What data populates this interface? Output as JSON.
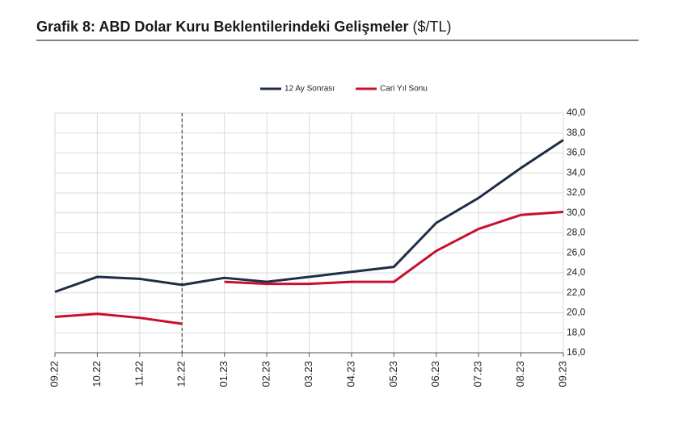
{
  "chart_data": {
    "type": "line",
    "title": "Grafik 8: ABD Dolar Kuru Beklentilerindeki Gelişmeler",
    "unit": "($/TL)",
    "categories": [
      "09.22",
      "10.22",
      "11.22",
      "12.22",
      "01.23",
      "02.23",
      "03.23",
      "04.23",
      "05.23",
      "06.23",
      "07.23",
      "08.23",
      "09.23"
    ],
    "series": [
      {
        "name": "12 Ay Sonrası",
        "color": "#1f2d46",
        "values": [
          22.1,
          23.6,
          23.4,
          22.8,
          23.5,
          23.1,
          23.6,
          24.1,
          24.6,
          29.0,
          31.5,
          34.5,
          37.3
        ]
      },
      {
        "name": "Cari Yıl Sonu",
        "color": "#c8102e",
        "break_at_vline": true,
        "values": [
          19.6,
          19.9,
          19.5,
          18.9,
          23.1,
          22.9,
          22.9,
          23.1,
          23.1,
          26.2,
          28.4,
          29.8,
          30.1
        ]
      }
    ],
    "vline_at": "12.22",
    "ylim": [
      16,
      40
    ],
    "yticks": [
      {
        "value": 16,
        "label": "16,0"
      },
      {
        "value": 18,
        "label": "18,0"
      },
      {
        "value": 20,
        "label": "20,0"
      },
      {
        "value": 22,
        "label": "22,0"
      },
      {
        "value": 24,
        "label": "24,0"
      },
      {
        "value": 26,
        "label": "26,0"
      },
      {
        "value": 28,
        "label": "28,0"
      },
      {
        "value": 30,
        "label": "30,0"
      },
      {
        "value": 32,
        "label": "32,0"
      },
      {
        "value": 34,
        "label": "34,0"
      },
      {
        "value": 36,
        "label": "36,0"
      },
      {
        "value": 38,
        "label": "38,0"
      },
      {
        "value": 40,
        "label": "40,0"
      }
    ],
    "y_axis_side": "right",
    "grid": true,
    "legend": "top"
  }
}
